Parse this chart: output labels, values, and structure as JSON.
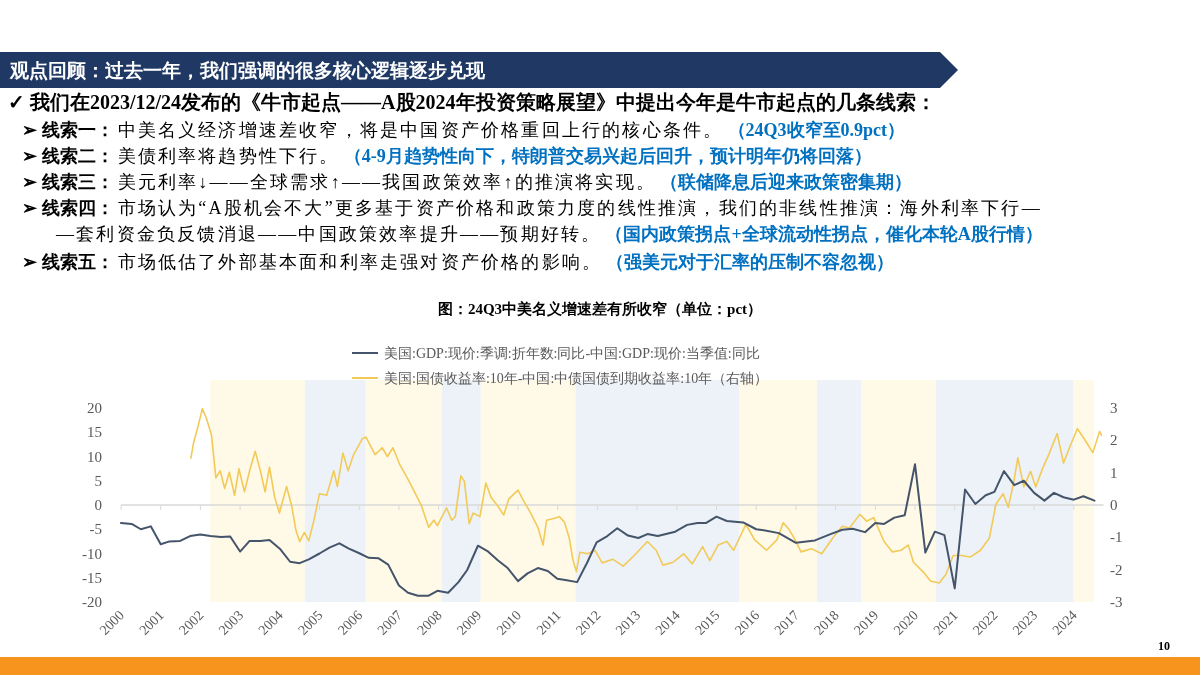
{
  "chart_data": {
    "type": "line",
    "title": "图：24Q3中美名义增速差有所收窄（单位：pct）",
    "annotations": [
      "观点回顾：过去一年，我们强调的很多核心逻辑逐步兑现",
      "✓ 我们在2023/12/24发布的《牛市起点——A股2024年投资策略展望》中提出今年是牛市起点的几条线索：",
      "➢ 线索一：",
      "中美名义经济增速差收窄，将是中国资产价格重回上行的核心条件。",
      "（24Q3收窄至0.9pct）",
      "➢ 线索二：",
      "美债利率将趋势性下行。",
      "（4-9月趋势性向下，特朗普交易兴起后回升，预计明年仍将回落）",
      "➢ 线索三：",
      "美元利率↓——全球需求↑——我国政策效率↑的推演将实现。",
      "（联储降息后迎来政策密集期）",
      "➢ 线索四：",
      "市场认为“A股机会不大”更多基于资产价格和政策力度的线性推演，我们的非线性推演：海外利率下行—",
      "—套利资金负反馈消退——中国政策效率提升——预期好转。",
      "（国内政策拐点+全球流动性拐点，催化本轮A股行情）",
      "➢ 线索五：",
      "市场低估了外部基本面和利率走强对资产价格的影响。",
      "（强美元对于汇率的压制不容忽视）",
      "10"
    ],
    "xlim": [
      2000,
      2024.75
    ],
    "xticks": [
      2000,
      2001,
      2002,
      2003,
      2004,
      2005,
      2006,
      2007,
      2008,
      2009,
      2010,
      2011,
      2012,
      2013,
      2014,
      2015,
      2016,
      2017,
      2018,
      2019,
      2020,
      2021,
      2022,
      2023,
      2024
    ],
    "ylim": [
      -20,
      20
    ],
    "yticks": [
      -20,
      -15,
      -10,
      -5,
      0,
      5,
      10,
      15,
      20
    ],
    "y2lim": [
      -3,
      3
    ],
    "y2ticks": [
      -3,
      -2,
      -1,
      0,
      1,
      2,
      3
    ],
    "legend": "top",
    "bands": [
      {
        "axis": "x",
        "from": 2002.25,
        "to": 2004.63,
        "color": "#fff9e8"
      },
      {
        "axis": "x",
        "from": 2004.63,
        "to": 2006.16,
        "color": "#edf2f8"
      },
      {
        "axis": "x",
        "from": 2006.16,
        "to": 2008.08,
        "color": "#fff9e8"
      },
      {
        "axis": "x",
        "from": 2008.08,
        "to": 2009.06,
        "color": "#edf2f8"
      },
      {
        "axis": "x",
        "from": 2009.06,
        "to": 2011.45,
        "color": "#fff9e8"
      },
      {
        "axis": "x",
        "from": 2011.45,
        "to": 2015.58,
        "color": "#edf2f8"
      },
      {
        "axis": "x",
        "from": 2015.58,
        "to": 2017.53,
        "color": "#fff9e8"
      },
      {
        "axis": "x",
        "from": 2017.53,
        "to": 2018.65,
        "color": "#edf2f8"
      },
      {
        "axis": "x",
        "from": 2018.65,
        "to": 2020.52,
        "color": "#fff9e8"
      },
      {
        "axis": "x",
        "from": 2020.52,
        "to": 2023.98,
        "color": "#edf2f8"
      },
      {
        "axis": "x",
        "from": 2023.98,
        "to": 2024.51,
        "color": "#fff9e8"
      }
    ],
    "series": [
      {
        "name": "美国:GDP:现价:季调:折年数:同比-中国:GDP:现价:当季值:同比",
        "color": "#44546a",
        "x": [
          2000.0,
          2000.27,
          2000.5,
          2000.75,
          2001.0,
          2001.22,
          2001.49,
          2001.74,
          2002.0,
          2002.25,
          2002.52,
          2002.75,
          2003.0,
          2003.24,
          2003.51,
          2003.74,
          2004.0,
          2004.26,
          2004.5,
          2004.73,
          2005.0,
          2005.25,
          2005.5,
          2005.74,
          2005.99,
          2006.24,
          2006.49,
          2006.73,
          2007.0,
          2007.23,
          2007.48,
          2007.75,
          2007.97,
          2008.24,
          2008.5,
          2008.72,
          2008.99,
          2009.23,
          2009.49,
          2009.74,
          2010.0,
          2010.24,
          2010.5,
          2010.75,
          2010.99,
          2011.23,
          2011.49,
          2011.74,
          2011.98,
          2012.25,
          2012.5,
          2012.77,
          2013.03,
          2013.26,
          2013.52,
          2013.96,
          2014.26,
          2014.52,
          2014.74,
          2015.0,
          2015.26,
          2015.67,
          2016.0,
          2016.26,
          2016.57,
          2017.0,
          2017.48,
          2017.87,
          2018.17,
          2018.43,
          2018.74,
          2019.0,
          2019.22,
          2019.48,
          2019.74,
          2020.0,
          2020.26,
          2020.5,
          2020.74,
          2021.0,
          2021.26,
          2021.52,
          2021.78,
          2022.0,
          2022.24,
          2022.5,
          2022.74,
          2023.0,
          2023.26,
          2023.5,
          2023.74,
          2024.0,
          2024.24,
          2024.52
        ],
        "values": [
          -3.7,
          -3.9,
          -5.0,
          -4.4,
          -8.1,
          -7.5,
          -7.4,
          -6.4,
          -6.1,
          -6.4,
          -6.6,
          -6.5,
          -9.6,
          -7.4,
          -7.4,
          -7.2,
          -9.0,
          -11.7,
          -12.0,
          -11.2,
          -10.0,
          -8.8,
          -7.9,
          -9.0,
          -9.9,
          -10.9,
          -11.0,
          -12.3,
          -16.6,
          -18.1,
          -18.7,
          -18.7,
          -17.7,
          -18.1,
          -15.9,
          -13.4,
          -8.4,
          -9.5,
          -11.4,
          -13.0,
          -15.7,
          -14.1,
          -13.0,
          -13.6,
          -15.2,
          -15.5,
          -15.9,
          -11.9,
          -7.7,
          -6.4,
          -4.8,
          -6.3,
          -6.8,
          -6.0,
          -6.4,
          -5.5,
          -4.1,
          -3.7,
          -3.7,
          -2.4,
          -3.3,
          -3.6,
          -5.0,
          -5.3,
          -5.8,
          -7.8,
          -7.3,
          -6.0,
          -5.1,
          -4.9,
          -5.6,
          -3.7,
          -3.9,
          -2.6,
          -2.1,
          8.4,
          -9.8,
          -5.5,
          -6.2,
          -17.2,
          3.2,
          0.2,
          2.0,
          2.7,
          7.0,
          4.1,
          5.0,
          2.5,
          0.9,
          2.5,
          1.6,
          1.1,
          1.8,
          0.9
        ]
      },
      {
        "name": "美国:国债收益率:10年-中国:中债国债到期收益率:10年（右轴）",
        "color": "#f2ca58",
        "axis": "y2",
        "x": [
          2001.76,
          2001.83,
          2001.94,
          2002.05,
          2002.16,
          2002.28,
          2002.39,
          2002.5,
          2002.61,
          2002.73,
          2002.86,
          2002.97,
          2003.11,
          2003.24,
          2003.38,
          2003.51,
          2003.63,
          2003.74,
          2003.87,
          2003.99,
          2004.17,
          2004.3,
          2004.41,
          2004.5,
          2004.62,
          2004.73,
          2004.86,
          2005.0,
          2005.18,
          2005.36,
          2005.45,
          2005.59,
          2005.72,
          2005.86,
          2006.08,
          2006.17,
          2006.4,
          2006.58,
          2006.71,
          2006.85,
          2007.03,
          2007.21,
          2007.39,
          2007.57,
          2007.75,
          2007.88,
          2007.97,
          2008.2,
          2008.33,
          2008.42,
          2008.56,
          2008.65,
          2008.77,
          2008.87,
          2009.04,
          2009.19,
          2009.32,
          2009.49,
          2009.64,
          2009.77,
          2010.0,
          2010.14,
          2010.32,
          2010.5,
          2010.63,
          2010.72,
          2010.9,
          2011.04,
          2011.17,
          2011.29,
          2011.38,
          2011.47,
          2011.56,
          2011.76,
          2011.94,
          2012.12,
          2012.39,
          2012.65,
          2012.92,
          2013.26,
          2013.48,
          2013.65,
          2013.91,
          2014.17,
          2014.39,
          2014.65,
          2014.83,
          2015.04,
          2015.26,
          2015.43,
          2015.74,
          2015.96,
          2016.26,
          2016.52,
          2016.68,
          2016.83,
          2016.96,
          2017.13,
          2017.39,
          2017.65,
          2017.83,
          2018.0,
          2018.17,
          2018.35,
          2018.61,
          2018.78,
          2018.96,
          2019.22,
          2019.43,
          2019.65,
          2019.83,
          2019.96,
          2020.22,
          2020.39,
          2020.61,
          2020.78,
          2020.96,
          2021.17,
          2021.39,
          2021.65,
          2021.87,
          2022.04,
          2022.22,
          2022.35,
          2022.48,
          2022.59,
          2022.74,
          2022.91,
          2023.04,
          2023.22,
          2023.39,
          2023.58,
          2023.74,
          2023.91,
          2024.09,
          2024.26,
          2024.48,
          2024.65,
          2024.7
        ],
        "values": [
          1.45,
          1.94,
          2.43,
          2.98,
          2.65,
          2.16,
          0.84,
          1.06,
          0.51,
          1.01,
          0.3,
          1.12,
          0.41,
          1.06,
          1.66,
          1.06,
          0.41,
          1.17,
          0.24,
          -0.25,
          0.57,
          -0.03,
          -0.8,
          -1.13,
          -0.85,
          -1.11,
          -0.47,
          0.35,
          0.3,
          1.06,
          0.57,
          1.61,
          1.06,
          1.56,
          2.05,
          2.1,
          1.56,
          1.77,
          1.5,
          1.77,
          1.23,
          0.84,
          0.41,
          -0.03,
          -0.69,
          -0.47,
          -0.64,
          -0.09,
          -0.47,
          -0.36,
          0.9,
          0.73,
          -0.58,
          -0.25,
          -0.36,
          0.68,
          0.24,
          -0.03,
          -0.31,
          0.19,
          0.46,
          0.13,
          -0.25,
          -0.69,
          -1.24,
          -0.47,
          -0.42,
          -0.36,
          -0.53,
          -1.02,
          -1.68,
          -2.06,
          -1.46,
          -1.51,
          -1.4,
          -1.79,
          -1.68,
          -1.89,
          -1.57,
          -1.13,
          -1.4,
          -1.86,
          -1.77,
          -1.51,
          -1.82,
          -1.29,
          -1.72,
          -1.24,
          -1.13,
          -1.4,
          -0.6,
          -1.08,
          -1.4,
          -1.08,
          -0.55,
          -0.76,
          -1.03,
          -1.45,
          -1.35,
          -1.51,
          -1.19,
          -0.9,
          -0.66,
          -0.71,
          -0.29,
          -0.5,
          -0.39,
          -1.13,
          -1.45,
          -1.4,
          -1.24,
          -1.77,
          -2.09,
          -2.35,
          -2.41,
          -2.14,
          -1.56,
          -1.56,
          -1.61,
          -1.4,
          -1.03,
          0.03,
          0.35,
          -0.07,
          0.67,
          1.46,
          0.56,
          1.04,
          0.56,
          1.15,
          1.62,
          2.21,
          1.3,
          1.83,
          2.36,
          2.05,
          1.62,
          2.28,
          2.15
        ]
      }
    ]
  }
}
